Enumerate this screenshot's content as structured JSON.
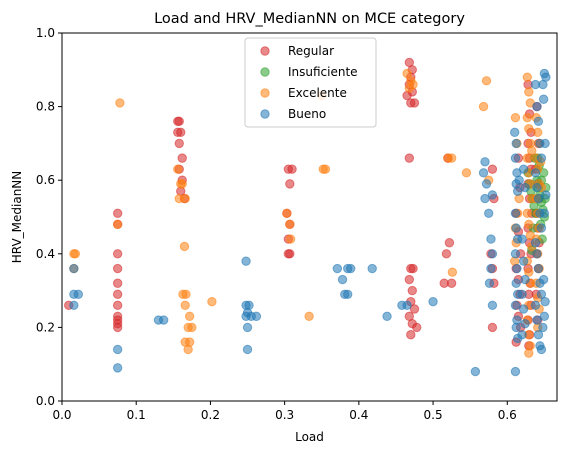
{
  "chart_data": {
    "type": "scatter",
    "title": "Load and HRV_MedianNN on MCE category",
    "xlabel": "Load",
    "ylabel": "HRV_MedianNN",
    "xlim": [
      0.0,
      0.667
    ],
    "ylim": [
      0.0,
      1.0
    ],
    "xticks": [
      "0.0",
      "0.1",
      "0.2",
      "0.3",
      "0.4",
      "0.5",
      "0.6"
    ],
    "yticks": [
      "0.0",
      "0.2",
      "0.4",
      "0.6",
      "0.8",
      "1.0"
    ],
    "grid": false,
    "legend_position": "top-center",
    "series": [
      {
        "name": "Regular",
        "color": "#d62728",
        "points": [
          [
            0.009,
            0.26
          ],
          [
            0.075,
            0.51
          ],
          [
            0.075,
            0.48
          ],
          [
            0.075,
            0.4
          ],
          [
            0.075,
            0.36
          ],
          [
            0.075,
            0.32
          ],
          [
            0.075,
            0.29
          ],
          [
            0.075,
            0.26
          ],
          [
            0.075,
            0.23
          ],
          [
            0.075,
            0.22
          ],
          [
            0.075,
            0.21
          ],
          [
            0.075,
            0.2
          ],
          [
            0.156,
            0.76
          ],
          [
            0.158,
            0.76
          ],
          [
            0.156,
            0.73
          ],
          [
            0.16,
            0.73
          ],
          [
            0.158,
            0.7
          ],
          [
            0.162,
            0.66
          ],
          [
            0.158,
            0.63
          ],
          [
            0.162,
            0.6
          ],
          [
            0.16,
            0.57
          ],
          [
            0.165,
            0.55
          ],
          [
            0.305,
            0.63
          ],
          [
            0.31,
            0.63
          ],
          [
            0.307,
            0.59
          ],
          [
            0.303,
            0.51
          ],
          [
            0.307,
            0.48
          ],
          [
            0.305,
            0.44
          ],
          [
            0.305,
            0.4
          ],
          [
            0.307,
            0.4
          ],
          [
            0.468,
            0.92
          ],
          [
            0.472,
            0.9
          ],
          [
            0.47,
            0.88
          ],
          [
            0.468,
            0.86
          ],
          [
            0.472,
            0.84
          ],
          [
            0.465,
            0.83
          ],
          [
            0.47,
            0.81
          ],
          [
            0.475,
            0.81
          ],
          [
            0.468,
            0.66
          ],
          [
            0.47,
            0.36
          ],
          [
            0.473,
            0.36
          ],
          [
            0.468,
            0.33
          ],
          [
            0.472,
            0.3
          ],
          [
            0.47,
            0.27
          ],
          [
            0.475,
            0.25
          ],
          [
            0.468,
            0.23
          ],
          [
            0.472,
            0.21
          ],
          [
            0.47,
            0.18
          ],
          [
            0.478,
            0.2
          ],
          [
            0.52,
            0.66
          ],
          [
            0.522,
            0.43
          ],
          [
            0.518,
            0.4
          ],
          [
            0.515,
            0.32
          ],
          [
            0.525,
            0.32
          ],
          [
            0.58,
            0.63
          ],
          [
            0.582,
            0.55
          ],
          [
            0.578,
            0.4
          ],
          [
            0.58,
            0.36
          ],
          [
            0.582,
            0.32
          ],
          [
            0.58,
            0.2
          ],
          [
            0.615,
            0.66
          ],
          [
            0.617,
            0.58
          ],
          [
            0.612,
            0.51
          ],
          [
            0.615,
            0.46
          ],
          [
            0.618,
            0.4
          ],
          [
            0.612,
            0.36
          ],
          [
            0.615,
            0.33
          ],
          [
            0.617,
            0.29
          ],
          [
            0.613,
            0.26
          ],
          [
            0.615,
            0.23
          ],
          [
            0.618,
            0.2
          ],
          [
            0.612,
            0.16
          ],
          [
            0.628,
            0.86
          ],
          [
            0.63,
            0.78
          ],
          [
            0.632,
            0.73
          ],
          [
            0.628,
            0.7
          ],
          [
            0.63,
            0.66
          ],
          [
            0.632,
            0.63
          ],
          [
            0.628,
            0.59
          ],
          [
            0.63,
            0.55
          ],
          [
            0.633,
            0.51
          ],
          [
            0.628,
            0.47
          ],
          [
            0.63,
            0.43
          ],
          [
            0.632,
            0.4
          ],
          [
            0.628,
            0.36
          ],
          [
            0.631,
            0.32
          ],
          [
            0.629,
            0.29
          ],
          [
            0.632,
            0.26
          ],
          [
            0.628,
            0.22
          ],
          [
            0.63,
            0.18
          ],
          [
            0.629,
            0.15
          ],
          [
            0.64,
            0.8
          ],
          [
            0.642,
            0.7
          ],
          [
            0.638,
            0.63
          ],
          [
            0.641,
            0.59
          ],
          [
            0.643,
            0.55
          ],
          [
            0.639,
            0.51
          ],
          [
            0.641,
            0.47
          ],
          [
            0.643,
            0.43
          ],
          [
            0.64,
            0.4
          ],
          [
            0.642,
            0.36
          ],
          [
            0.639,
            0.29
          ],
          [
            0.641,
            0.22
          ]
        ]
      },
      {
        "name": "Insuficiente",
        "color": "#2ca02c",
        "points": [
          [
            0.628,
            0.62
          ],
          [
            0.63,
            0.59
          ],
          [
            0.632,
            0.57
          ],
          [
            0.634,
            0.55
          ],
          [
            0.636,
            0.53
          ],
          [
            0.638,
            0.51
          ],
          [
            0.64,
            0.6
          ],
          [
            0.642,
            0.58
          ],
          [
            0.644,
            0.56
          ],
          [
            0.646,
            0.54
          ],
          [
            0.648,
            0.52
          ],
          [
            0.65,
            0.5
          ],
          [
            0.637,
            0.66
          ],
          [
            0.643,
            0.64
          ],
          [
            0.649,
            0.62
          ],
          [
            0.635,
            0.47
          ],
          [
            0.645,
            0.48
          ],
          [
            0.651,
            0.55
          ],
          [
            0.633,
            0.41
          ],
          [
            0.647,
            0.44
          ],
          [
            0.641,
            0.66
          ],
          [
            0.646,
            0.6
          ],
          [
            0.652,
            0.58
          ]
        ]
      },
      {
        "name": "Excelente",
        "color": "#ff7f0e",
        "points": [
          [
            0.016,
            0.4
          ],
          [
            0.018,
            0.4
          ],
          [
            0.016,
            0.36
          ],
          [
            0.075,
            0.48
          ],
          [
            0.078,
            0.81
          ],
          [
            0.156,
            0.63
          ],
          [
            0.16,
            0.59
          ],
          [
            0.162,
            0.59
          ],
          [
            0.158,
            0.55
          ],
          [
            0.166,
            0.55
          ],
          [
            0.165,
            0.42
          ],
          [
            0.163,
            0.29
          ],
          [
            0.167,
            0.29
          ],
          [
            0.166,
            0.26
          ],
          [
            0.172,
            0.23
          ],
          [
            0.17,
            0.2
          ],
          [
            0.175,
            0.2
          ],
          [
            0.166,
            0.16
          ],
          [
            0.172,
            0.16
          ],
          [
            0.17,
            0.14
          ],
          [
            0.202,
            0.27
          ],
          [
            0.303,
            0.51
          ],
          [
            0.307,
            0.48
          ],
          [
            0.308,
            0.44
          ],
          [
            0.333,
            0.23
          ],
          [
            0.352,
            0.63
          ],
          [
            0.355,
            0.63
          ],
          [
            0.35,
            0.83
          ],
          [
            0.465,
            0.89
          ],
          [
            0.47,
            0.87
          ],
          [
            0.473,
            0.86
          ],
          [
            0.468,
            0.85
          ],
          [
            0.52,
            0.66
          ],
          [
            0.525,
            0.66
          ],
          [
            0.526,
            0.35
          ],
          [
            0.545,
            0.62
          ],
          [
            0.568,
            0.8
          ],
          [
            0.572,
            0.87
          ],
          [
            0.575,
            0.6
          ],
          [
            0.611,
            0.77
          ],
          [
            0.613,
            0.7
          ],
          [
            0.616,
            0.55
          ],
          [
            0.614,
            0.51
          ],
          [
            0.611,
            0.47
          ],
          [
            0.612,
            0.43
          ],
          [
            0.61,
            0.38
          ],
          [
            0.627,
            0.88
          ],
          [
            0.629,
            0.84
          ],
          [
            0.631,
            0.81
          ],
          [
            0.627,
            0.77
          ],
          [
            0.629,
            0.74
          ],
          [
            0.631,
            0.7
          ],
          [
            0.633,
            0.68
          ],
          [
            0.627,
            0.66
          ],
          [
            0.629,
            0.62
          ],
          [
            0.631,
            0.59
          ],
          [
            0.633,
            0.55
          ],
          [
            0.627,
            0.51
          ],
          [
            0.629,
            0.48
          ],
          [
            0.631,
            0.45
          ],
          [
            0.633,
            0.42
          ],
          [
            0.627,
            0.38
          ],
          [
            0.629,
            0.35
          ],
          [
            0.631,
            0.32
          ],
          [
            0.629,
            0.26
          ],
          [
            0.627,
            0.22
          ],
          [
            0.629,
            0.18
          ],
          [
            0.631,
            0.15
          ],
          [
            0.629,
            0.13
          ],
          [
            0.639,
            0.77
          ],
          [
            0.641,
            0.73
          ],
          [
            0.643,
            0.7
          ],
          [
            0.639,
            0.66
          ],
          [
            0.641,
            0.63
          ],
          [
            0.643,
            0.59
          ],
          [
            0.639,
            0.55
          ],
          [
            0.641,
            0.51
          ],
          [
            0.643,
            0.47
          ],
          [
            0.639,
            0.44
          ],
          [
            0.641,
            0.4
          ],
          [
            0.643,
            0.36
          ],
          [
            0.639,
            0.32
          ],
          [
            0.641,
            0.28
          ],
          [
            0.643,
            0.25
          ],
          [
            0.641,
            0.2
          ],
          [
            0.645,
            0.65
          ],
          [
            0.646,
            0.58
          ]
        ]
      },
      {
        "name": "Bueno",
        "color": "#1f77b4",
        "points": [
          [
            0.016,
            0.36
          ],
          [
            0.016,
            0.29
          ],
          [
            0.016,
            0.26
          ],
          [
            0.022,
            0.29
          ],
          [
            0.075,
            0.14
          ],
          [
            0.075,
            0.09
          ],
          [
            0.13,
            0.22
          ],
          [
            0.137,
            0.22
          ],
          [
            0.248,
            0.38
          ],
          [
            0.248,
            0.26
          ],
          [
            0.252,
            0.26
          ],
          [
            0.25,
            0.24
          ],
          [
            0.248,
            0.23
          ],
          [
            0.255,
            0.23
          ],
          [
            0.262,
            0.23
          ],
          [
            0.25,
            0.2
          ],
          [
            0.25,
            0.14
          ],
          [
            0.371,
            0.36
          ],
          [
            0.385,
            0.36
          ],
          [
            0.389,
            0.36
          ],
          [
            0.378,
            0.33
          ],
          [
            0.381,
            0.29
          ],
          [
            0.385,
            0.29
          ],
          [
            0.418,
            0.36
          ],
          [
            0.438,
            0.23
          ],
          [
            0.458,
            0.26
          ],
          [
            0.465,
            0.26
          ],
          [
            0.5,
            0.27
          ],
          [
            0.557,
            0.08
          ],
          [
            0.57,
            0.65
          ],
          [
            0.568,
            0.62
          ],
          [
            0.572,
            0.59
          ],
          [
            0.57,
            0.55
          ],
          [
            0.575,
            0.51
          ],
          [
            0.58,
            0.56
          ],
          [
            0.578,
            0.44
          ],
          [
            0.58,
            0.4
          ],
          [
            0.578,
            0.36
          ],
          [
            0.576,
            0.32
          ],
          [
            0.58,
            0.26
          ],
          [
            0.61,
            0.73
          ],
          [
            0.612,
            0.7
          ],
          [
            0.611,
            0.66
          ],
          [
            0.613,
            0.62
          ],
          [
            0.612,
            0.59
          ],
          [
            0.614,
            0.57
          ],
          [
            0.611,
            0.51
          ],
          [
            0.612,
            0.47
          ],
          [
            0.614,
            0.44
          ],
          [
            0.611,
            0.4
          ],
          [
            0.613,
            0.36
          ],
          [
            0.612,
            0.32
          ],
          [
            0.614,
            0.29
          ],
          [
            0.611,
            0.26
          ],
          [
            0.613,
            0.22
          ],
          [
            0.612,
            0.2
          ],
          [
            0.614,
            0.17
          ],
          [
            0.611,
            0.08
          ],
          [
            0.616,
            0.6
          ],
          [
            0.622,
            0.63
          ],
          [
            0.624,
            0.58
          ],
          [
            0.62,
            0.44
          ],
          [
            0.622,
            0.38
          ],
          [
            0.624,
            0.33
          ],
          [
            0.62,
            0.29
          ],
          [
            0.622,
            0.25
          ],
          [
            0.624,
            0.21
          ],
          [
            0.62,
            0.18
          ],
          [
            0.638,
            0.86
          ],
          [
            0.64,
            0.8
          ],
          [
            0.642,
            0.76
          ],
          [
            0.644,
            0.7
          ],
          [
            0.646,
            0.66
          ],
          [
            0.638,
            0.62
          ],
          [
            0.64,
            0.58
          ],
          [
            0.642,
            0.55
          ],
          [
            0.644,
            0.51
          ],
          [
            0.646,
            0.47
          ],
          [
            0.638,
            0.43
          ],
          [
            0.64,
            0.4
          ],
          [
            0.642,
            0.36
          ],
          [
            0.644,
            0.32
          ],
          [
            0.646,
            0.29
          ],
          [
            0.638,
            0.26
          ],
          [
            0.64,
            0.22
          ],
          [
            0.642,
            0.18
          ],
          [
            0.644,
            0.15
          ],
          [
            0.646,
            0.14
          ],
          [
            0.648,
            0.86
          ],
          [
            0.65,
            0.89
          ],
          [
            0.652,
            0.88
          ],
          [
            0.649,
            0.82
          ],
          [
            0.651,
            0.7
          ],
          [
            0.652,
            0.56
          ],
          [
            0.65,
            0.51
          ],
          [
            0.649,
            0.33
          ],
          [
            0.651,
            0.27
          ],
          [
            0.65,
            0.23
          ],
          [
            0.648,
            0.2
          ]
        ]
      }
    ]
  }
}
